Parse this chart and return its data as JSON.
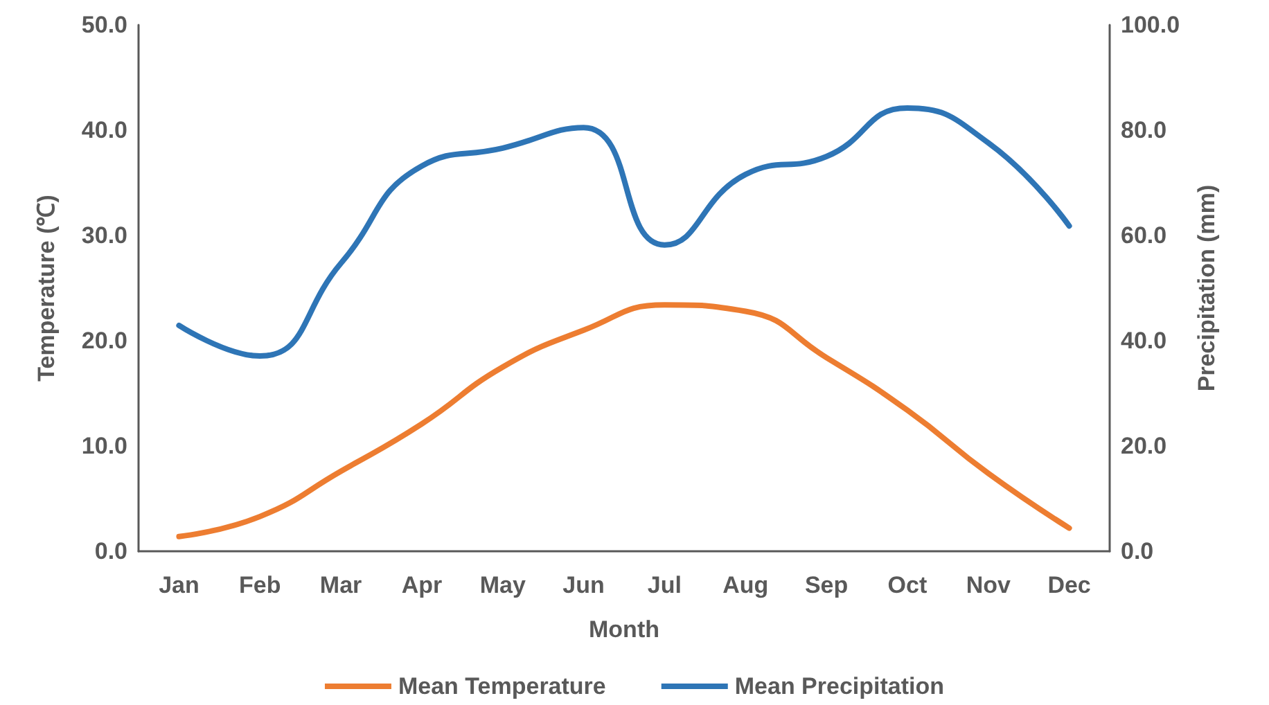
{
  "chart_data": {
    "type": "line",
    "xlabel": "Month",
    "ylabel": "Temperature (℃)",
    "y2label": "Precipitation (mm)",
    "categories": [
      "Jan",
      "Feb",
      "Mar",
      "Apr",
      "May",
      "Jun",
      "Jul",
      "Aug",
      "Sep",
      "Oct",
      "Nov",
      "Dec"
    ],
    "series": [
      {
        "name": "Mean Temperature",
        "color": "#ed7d31",
        "values": [
          1.4,
          3.3,
          7.6,
          12.1,
          17.5,
          21.0,
          23.4,
          22.8,
          18.4,
          13.4,
          7.4,
          2.2
        ]
      },
      {
        "name": "Mean Precipitation",
        "color": "#2e75b6",
        "axis": "y2",
        "values": [
          42.9,
          37.1,
          54.7,
          73.2,
          76.6,
          80.5,
          58.2,
          71.6,
          75.0,
          84.2,
          77.6,
          61.8
        ]
      }
    ],
    "ylim": [
      0,
      50
    ],
    "yticks": [
      {
        "value": 0,
        "label": "0.0"
      },
      {
        "value": 10,
        "label": "10.0"
      },
      {
        "value": 20,
        "label": "20.0"
      },
      {
        "value": 30,
        "label": "30.0"
      },
      {
        "value": 40,
        "label": "40.0"
      },
      {
        "value": 50,
        "label": "50.0"
      }
    ],
    "y2lim": [
      0,
      100
    ],
    "y2ticks": [
      {
        "value": 0,
        "label": "0.0"
      },
      {
        "value": 20,
        "label": "20.0"
      },
      {
        "value": 40,
        "label": "40.0"
      },
      {
        "value": 60,
        "label": "60.0"
      },
      {
        "value": 80,
        "label": "80.0"
      },
      {
        "value": 100,
        "label": "100.0"
      }
    ],
    "grid": false,
    "legend": "bottom",
    "marker": "none",
    "line_style": "solid"
  }
}
